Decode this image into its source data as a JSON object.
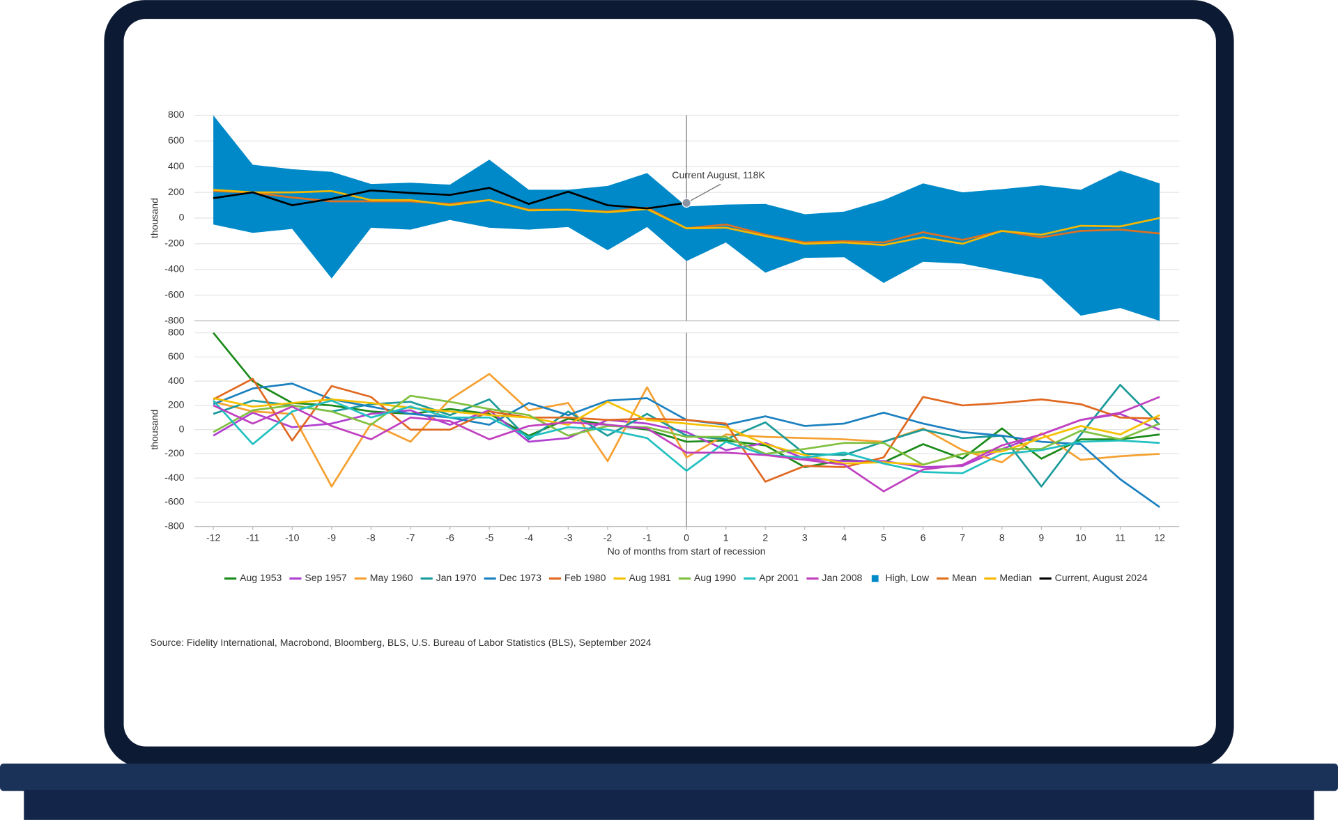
{
  "chart_data": [
    {
      "type": "area",
      "y_label": "thousand",
      "annotation": "Current August, 118K",
      "x": [
        -12,
        -11,
        -10,
        -9,
        -8,
        -7,
        -6,
        -5,
        -4,
        -3,
        -2,
        -1,
        0,
        1,
        2,
        3,
        4,
        5,
        6,
        7,
        8,
        9,
        10,
        11,
        12
      ],
      "xlim": [
        -12,
        12
      ],
      "ylim": [
        -800,
        800
      ],
      "yticks": [
        -800,
        -600,
        -400,
        -200,
        0,
        200,
        400,
        600,
        800
      ],
      "grid": true,
      "series": [
        {
          "name": "High, Low",
          "color": "#0089c8",
          "values": [
            800,
            415,
            380,
            360,
            265,
            275,
            260,
            455,
            220,
            220,
            250,
            350,
            90,
            105,
            110,
            30,
            50,
            140,
            270,
            200,
            225,
            255,
            220,
            370,
            270
          ],
          "low": [
            -50,
            -115,
            -85,
            -470,
            -75,
            -90,
            -15,
            -75,
            -90,
            -70,
            -250,
            -70,
            -335,
            -190,
            -425,
            -310,
            -305,
            -505,
            -340,
            -355,
            -415,
            -475,
            -760,
            -700,
            -800
          ]
        },
        {
          "name": "Mean",
          "color": "#e07020",
          "values": [
            210,
            200,
            160,
            130,
            130,
            130,
            110,
            140,
            65,
            65,
            50,
            80,
            -80,
            -50,
            -130,
            -190,
            -180,
            -190,
            -110,
            -170,
            -100,
            -150,
            -100,
            -90,
            -120
          ]
        },
        {
          "name": "Median",
          "color": "#f5b800",
          "values": [
            220,
            200,
            200,
            210,
            140,
            140,
            100,
            140,
            60,
            65,
            45,
            70,
            -80,
            -75,
            -140,
            -200,
            -190,
            -210,
            -150,
            -200,
            -100,
            -130,
            -60,
            -65,
            0
          ]
        },
        {
          "name": "Current, August 2024",
          "color": "#000000",
          "values": [
            155,
            200,
            100,
            150,
            215,
            195,
            180,
            235,
            110,
            205,
            100,
            75,
            118,
            null,
            null,
            null,
            null,
            null,
            null,
            null,
            null,
            null,
            null,
            null,
            null
          ]
        }
      ]
    },
    {
      "type": "line",
      "y_label": "thousand",
      "x_label": "No of months from start of recession",
      "x": [
        -12,
        -11,
        -10,
        -9,
        -8,
        -7,
        -6,
        -5,
        -4,
        -3,
        -2,
        -1,
        0,
        1,
        2,
        3,
        4,
        5,
        6,
        7,
        8,
        9,
        10,
        11,
        12
      ],
      "xlim": [
        -12,
        12
      ],
      "xticks": [
        -12,
        -11,
        -10,
        -9,
        -8,
        -7,
        -6,
        -5,
        -4,
        -3,
        -2,
        -1,
        0,
        1,
        2,
        3,
        4,
        5,
        6,
        7,
        8,
        9,
        10,
        11,
        12
      ],
      "ylim": [
        -800,
        800
      ],
      "yticks": [
        -800,
        -600,
        -400,
        -200,
        0,
        200,
        400,
        600,
        800
      ],
      "grid": true,
      "source": "Source: Fidelity International, Macrobond, Bloomberg, BLS, U.S. Bureau of Labor Statistics (BLS), September 2024",
      "series": [
        {
          "name": "Aug 1953",
          "color": "#1a8a1a",
          "values": [
            800,
            400,
            220,
            200,
            150,
            130,
            170,
            130,
            -50,
            90,
            40,
            0,
            -100,
            -90,
            -130,
            -310,
            -250,
            -270,
            -120,
            -240,
            10,
            -240,
            -80,
            -80,
            -40
          ]
        },
        {
          "name": "Sep 1957",
          "color": "#b040d0",
          "values": [
            -50,
            140,
            20,
            50,
            130,
            160,
            40,
            160,
            -100,
            -70,
            80,
            50,
            -20,
            -170,
            -110,
            -240,
            -260,
            -260,
            -310,
            -300,
            -160,
            -40,
            80,
            130,
            0
          ]
        },
        {
          "name": "May 1960",
          "color": "#f5a030",
          "values": [
            230,
            150,
            130,
            -470,
            50,
            -100,
            250,
            460,
            160,
            220,
            -260,
            350,
            -230,
            -40,
            -60,
            -70,
            -80,
            -100,
            10,
            -170,
            -270,
            -30,
            -250,
            -220,
            -200
          ]
        },
        {
          "name": "Jan 1970",
          "color": "#1a9a9a",
          "values": [
            130,
            240,
            200,
            150,
            210,
            230,
            120,
            250,
            -80,
            150,
            -50,
            130,
            -50,
            -80,
            60,
            -200,
            -210,
            -100,
            0,
            -70,
            -50,
            -470,
            -40,
            370,
            40
          ]
        },
        {
          "name": "Dec 1973",
          "color": "#1a80c0",
          "values": [
            210,
            340,
            380,
            250,
            190,
            130,
            100,
            40,
            220,
            120,
            240,
            260,
            80,
            40,
            110,
            30,
            50,
            140,
            50,
            -20,
            -50,
            -100,
            -120,
            -410,
            -640
          ]
        },
        {
          "name": "Feb 1980",
          "color": "#e06820",
          "values": [
            250,
            420,
            -90,
            360,
            270,
            0,
            0,
            150,
            100,
            100,
            80,
            90,
            80,
            50,
            -430,
            -300,
            -310,
            -230,
            270,
            200,
            220,
            250,
            210,
            100,
            90
          ]
        },
        {
          "name": "Aug 1981",
          "color": "#f5c000",
          "values": [
            260,
            190,
            220,
            250,
            220,
            180,
            150,
            120,
            100,
            40,
            230,
            80,
            50,
            20,
            -120,
            -210,
            -280,
            -270,
            -290,
            -200,
            -180,
            -70,
            30,
            -40,
            120
          ]
        },
        {
          "name": "Aug 1990",
          "color": "#80c040",
          "values": [
            -20,
            160,
            200,
            150,
            40,
            280,
            230,
            170,
            120,
            -50,
            30,
            20,
            -60,
            -60,
            -200,
            -160,
            -110,
            -110,
            -290,
            -200,
            -160,
            -160,
            -10,
            -80,
            50
          ]
        },
        {
          "name": "Apr 2001",
          "color": "#20c0c0",
          "values": [
            240,
            -120,
            150,
            240,
            100,
            190,
            100,
            100,
            -60,
            20,
            0,
            -70,
            -340,
            -100,
            -210,
            -230,
            -190,
            -280,
            -350,
            -360,
            -200,
            -170,
            -100,
            -90,
            -110
          ]
        },
        {
          "name": "Jan 2008",
          "color": "#c040c0",
          "values": [
            200,
            50,
            190,
            30,
            -80,
            100,
            70,
            -80,
            30,
            60,
            40,
            10,
            -190,
            -190,
            -210,
            -250,
            -290,
            -510,
            -330,
            -290,
            -130,
            -40,
            80,
            140,
            270
          ]
        }
      ]
    }
  ]
}
